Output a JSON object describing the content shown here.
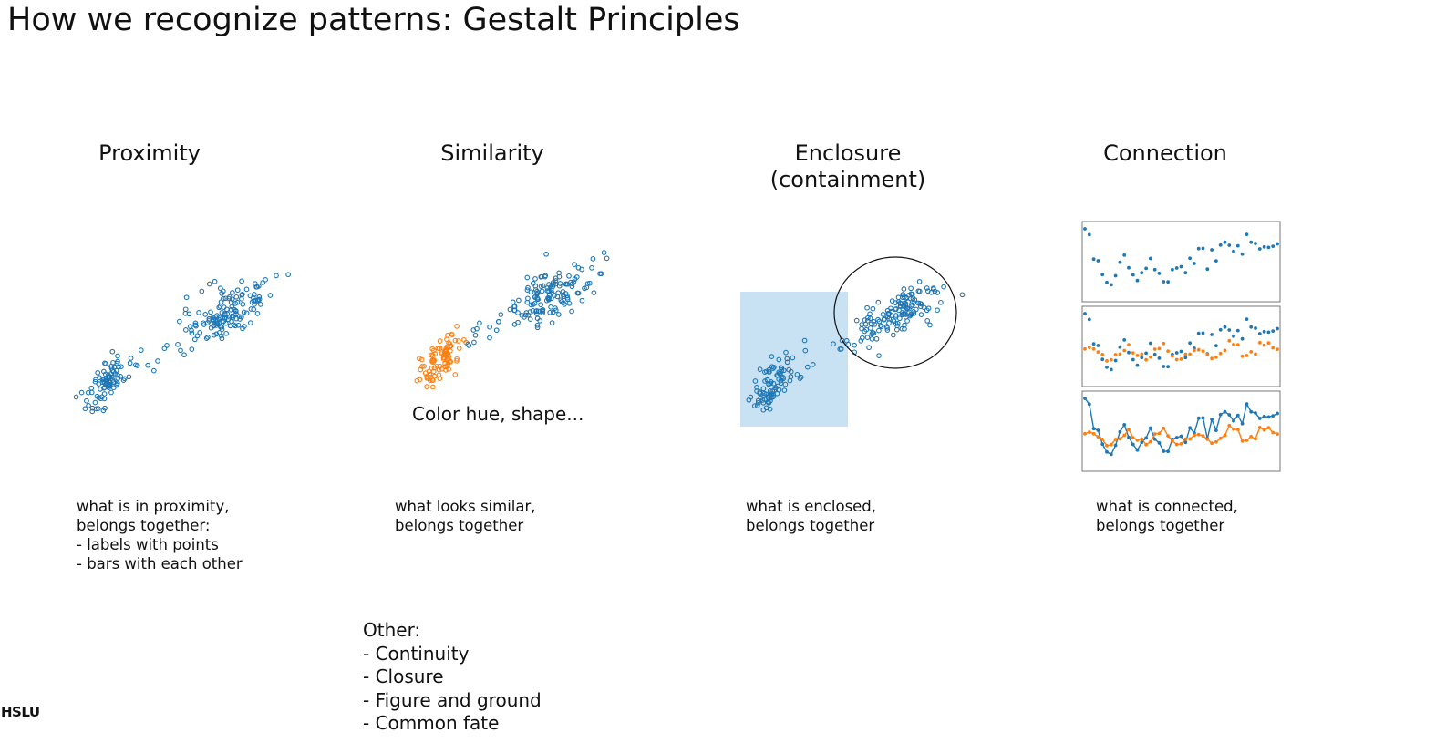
{
  "title": "How we recognize patterns: Gestalt Principles",
  "colors": {
    "blue": "#1f77b4",
    "orange": "#ff7f0e",
    "enclosure_fill": "#c8e1f3",
    "text": "#111111"
  },
  "principles": [
    {
      "heading": "Proximity",
      "caption_lines": [
        "what is in proximity,",
        "belongs together:"
      ],
      "caption_items": [
        "-  labels with points",
        "-  bars with each other"
      ]
    },
    {
      "heading": "Similarity",
      "note": "Color hue, shape...",
      "caption_lines": [
        "what looks similar,",
        "belongs together"
      ]
    },
    {
      "heading_lines": [
        "Enclosure",
        "(containment)"
      ],
      "caption_lines": [
        "what is enclosed,",
        "belongs together"
      ]
    },
    {
      "heading": "Connection",
      "caption_lines": [
        "what is connected,",
        "belongs together"
      ]
    }
  ],
  "other": {
    "label": "Other:",
    "items": [
      "- Continuity",
      "- Closure",
      "- Figure and ground",
      "- Common fate"
    ]
  },
  "logo": "HSLU"
}
